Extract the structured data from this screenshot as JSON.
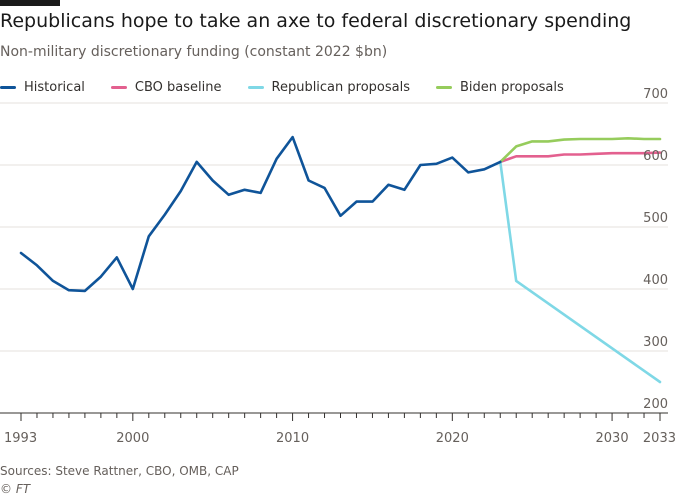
{
  "title": "Republicans hope to take an axe to federal discretionary spending",
  "subtitle": "Non-military discretionary funding (constant 2022 $bn)",
  "source": "Sources: Steve Rattner, CBO, OMB, CAP",
  "credit": "© FT",
  "colors": {
    "historical": "#0f5499",
    "cbo": "#e3608f",
    "republican": "#7fd8e6",
    "biden": "#96cc5c",
    "grid": "#e6e2de",
    "axis": "#33302e"
  },
  "chart_data": {
    "type": "line",
    "title": "Republicans hope to take an axe to federal discretionary spending",
    "subtitle": "Non-military discretionary funding (constant 2022 $bn)",
    "xlabel": "",
    "ylabel": "",
    "xlim": [
      1993,
      2033
    ],
    "ylim": [
      200,
      700
    ],
    "y_axis_side": "right",
    "grid": "horizontal",
    "legend_position": "top",
    "x_ticks": [
      1993,
      2000,
      2010,
      2020,
      2030,
      2033
    ],
    "x_tick_labels": [
      "1993",
      "2000",
      "2010",
      "2020",
      "2030",
      "2033"
    ],
    "y_ticks": [
      200,
      300,
      400,
      500,
      600,
      700
    ],
    "y_tick_labels": [
      "200",
      "300",
      "400",
      "500",
      "600",
      "700"
    ],
    "series": [
      {
        "name": "Historical",
        "color_key": "historical",
        "x": [
          1993,
          1994,
          1995,
          1996,
          1997,
          1998,
          1999,
          2000,
          2001,
          2002,
          2003,
          2004,
          2005,
          2006,
          2007,
          2008,
          2009,
          2010,
          2011,
          2012,
          2013,
          2014,
          2015,
          2016,
          2017,
          2018,
          2019,
          2020,
          2021,
          2022,
          2023
        ],
        "y": [
          458,
          438,
          413,
          398,
          397,
          420,
          451,
          400,
          485,
          520,
          558,
          605,
          575,
          552,
          560,
          555,
          610,
          645,
          575,
          563,
          518,
          541,
          541,
          568,
          560,
          600,
          602,
          612,
          588,
          593,
          605
        ]
      },
      {
        "name": "CBO baseline",
        "color_key": "cbo",
        "x": [
          2023,
          2024,
          2025,
          2026,
          2027,
          2028,
          2029,
          2030,
          2031,
          2032,
          2033
        ],
        "y": [
          605,
          614,
          614,
          614,
          617,
          617,
          618,
          619,
          619,
          619,
          620
        ]
      },
      {
        "name": "Republican proposals",
        "color_key": "republican",
        "x": [
          2023,
          2024,
          2033
        ],
        "y": [
          605,
          413,
          250
        ]
      },
      {
        "name": "Biden proposals",
        "color_key": "biden",
        "x": [
          2023,
          2024,
          2025,
          2026,
          2027,
          2028,
          2029,
          2030,
          2031,
          2032,
          2033
        ],
        "y": [
          605,
          630,
          638,
          638,
          641,
          642,
          642,
          642,
          643,
          642,
          642
        ]
      }
    ]
  }
}
